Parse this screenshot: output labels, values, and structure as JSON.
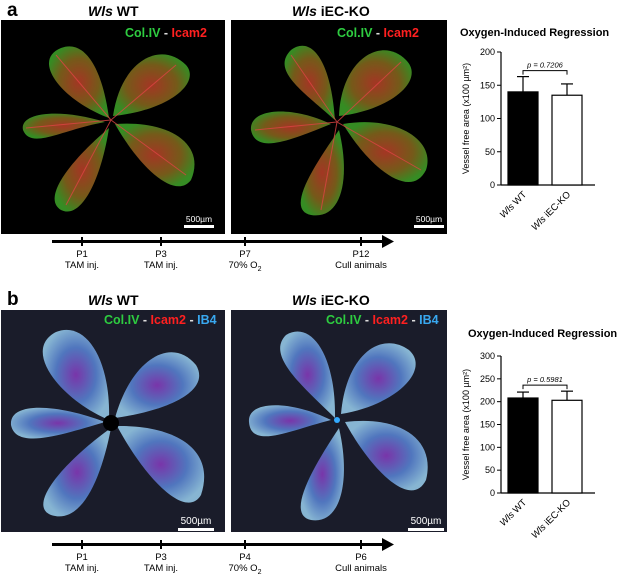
{
  "panel_a": {
    "letter": "a",
    "title_wt_gene": "Wls",
    "title_wt_rest": " WT",
    "title_ko_gene": "Wls",
    "title_ko_rest": " iEC-KO",
    "stain1": "Col.IV",
    "sep": " - ",
    "stain2": "Icam2",
    "scale": "500µm",
    "timeline": [
      {
        "day": "P1",
        "event": "TAM inj."
      },
      {
        "day": "P3",
        "event": "TAM inj."
      },
      {
        "day": "P7",
        "event": "70% O",
        "sub": "2"
      },
      {
        "day": "P12",
        "event": "Cull animals"
      }
    ]
  },
  "panel_b": {
    "letter": "b",
    "title_wt_gene": "Wls",
    "title_wt_rest": " WT",
    "title_ko_gene": "Wls",
    "title_ko_rest": " iEC-KO",
    "stain1": "Col.IV",
    "sep": " - ",
    "stain2": "Icam2",
    "stain3": "IB4",
    "scale": "500µm",
    "timeline": [
      {
        "day": "P1",
        "event": "TAM inj."
      },
      {
        "day": "P3",
        "event": "TAM inj."
      },
      {
        "day": "P4",
        "event": "70% O",
        "sub": "2"
      },
      {
        "day": "P6",
        "event": "Cull animals"
      }
    ]
  },
  "chart_data": [
    {
      "type": "bar",
      "title": "Oxygen-Induced Regression",
      "ylabel": "Vessel free area (x100 µm²)",
      "ylim": [
        0,
        200
      ],
      "yticks": [
        "0",
        "50",
        "100",
        "150",
        "200"
      ],
      "categories": [
        "Wls WT",
        "Wls iEC-KO"
      ],
      "values": [
        140,
        135
      ],
      "errors": [
        23,
        17
      ],
      "bar_fill": [
        "#000000",
        "#ffffff"
      ],
      "annotation": "p = 0.7206"
    },
    {
      "type": "bar",
      "title": "Oxygen-Induced Regression",
      "ylabel": "Vessel free area (x100 µm²)",
      "ylim": [
        0,
        300
      ],
      "yticks": [
        "0",
        "50",
        "100",
        "150",
        "200",
        "250",
        "300"
      ],
      "categories": [
        "Wls WT",
        "Wls iEC-KO"
      ],
      "values": [
        208,
        203
      ],
      "errors": [
        13,
        20
      ],
      "bar_fill": [
        "#000000",
        "#ffffff"
      ],
      "annotation": "p = 0.5981"
    }
  ]
}
